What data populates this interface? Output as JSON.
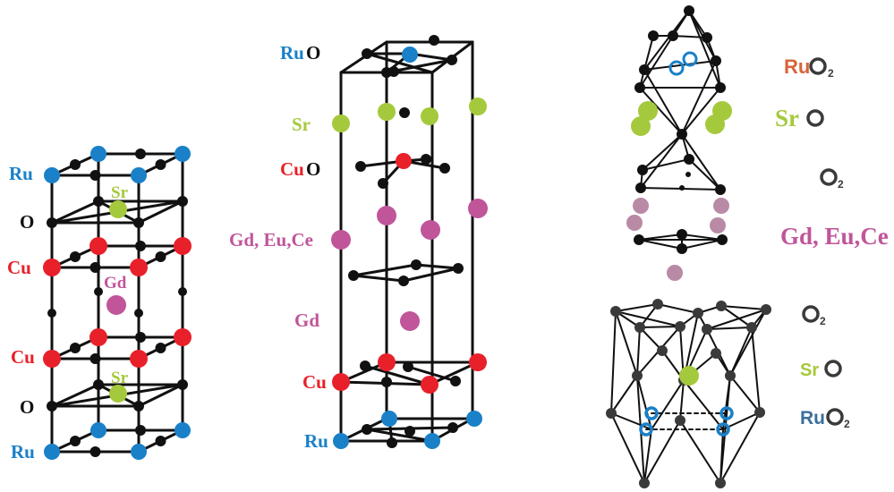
{
  "colors": {
    "ru": "#1a80c8",
    "cu": "#e8202a",
    "sr": "#a5c93c",
    "gd": "#c0559a",
    "gd_light": "#b98aa6",
    "oxygen": "#111111",
    "ruo2_orange": "#d9643a",
    "ru_steel": "#3b6e9c",
    "ring_gray": "#3a3a3a",
    "bond": "#111111"
  },
  "panel_left": {
    "labels": {
      "ru_top": "Ru",
      "o_top": "O",
      "sr_top": "Sr",
      "cu_top": "Cu",
      "gd": "Gd",
      "cu_bottom": "Cu",
      "sr_bottom": "Sr",
      "o_bottom": "O",
      "ru_bottom": "Ru"
    }
  },
  "panel_middle": {
    "labels": {
      "ru": "Ru",
      "ru_o": "O",
      "sr": "Sr",
      "cu": "Cu",
      "cu_o": "O",
      "gd_eu_ce": "Gd, Eu,Ce",
      "gd": "Gd",
      "cu_bottom": "Cu",
      "ru_bottom": "Ru"
    }
  },
  "panel_right": {
    "labels": {
      "ru_top": "Ru",
      "o2_top": "O",
      "o2_top_sub": "2",
      "sr": "Sr",
      "o_ring_sr": "O",
      "o2_mid": "O",
      "o2_mid_sub": "2",
      "gd_eu_ce": "Gd, Eu,Ce",
      "o2_low": "O",
      "o2_low_sub": "2",
      "sr_low": "Sr",
      "sr_low_o": "O",
      "ru_low": "Ru",
      "ru_low_o": "O",
      "ru_low_sub": "2"
    }
  }
}
